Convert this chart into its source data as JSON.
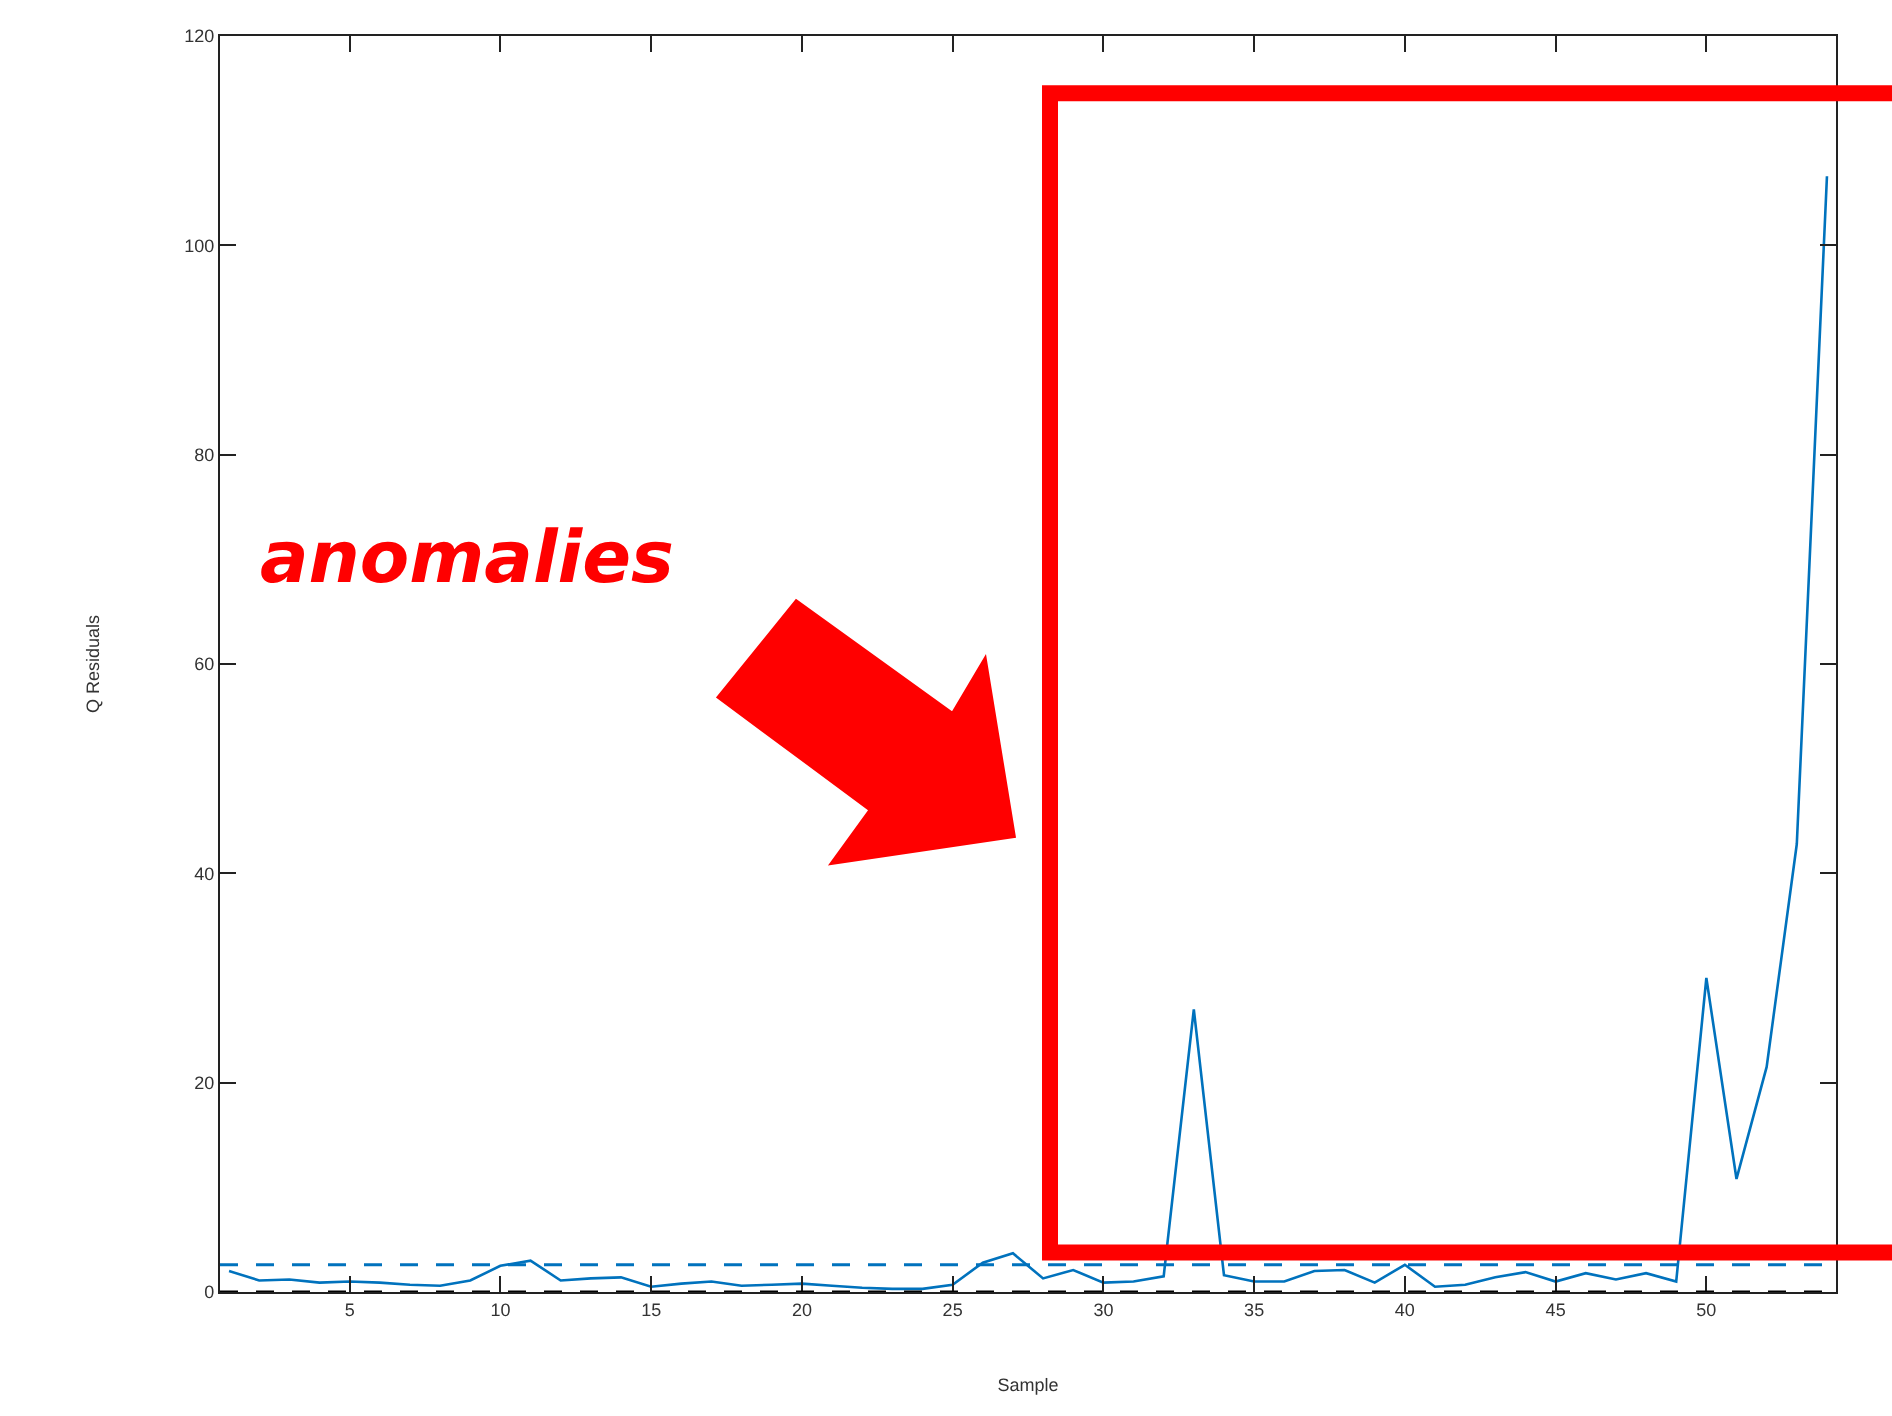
{
  "chart_data": {
    "type": "line",
    "xlabel": "Sample",
    "ylabel": "Q Residuals",
    "x": [
      1,
      2,
      3,
      4,
      5,
      6,
      7,
      8,
      9,
      10,
      11,
      12,
      13,
      14,
      15,
      16,
      17,
      18,
      19,
      20,
      21,
      22,
      23,
      24,
      25,
      26,
      27,
      28,
      29,
      30,
      31,
      32,
      33,
      34,
      35,
      36,
      37,
      38,
      39,
      40,
      41,
      42,
      43,
      44,
      45,
      46,
      47,
      48,
      49,
      50,
      51,
      52,
      53,
      54
    ],
    "series": [
      {
        "color": "#0072bd",
        "values": [
          2.0,
          1.1,
          1.2,
          0.9,
          1.0,
          0.9,
          0.7,
          0.6,
          1.1,
          2.5,
          3.0,
          1.1,
          1.3,
          1.4,
          0.5,
          0.8,
          1.0,
          0.6,
          0.7,
          0.8,
          0.6,
          0.4,
          0.3,
          0.3,
          0.7,
          2.8,
          3.7,
          1.3,
          2.1,
          0.9,
          1.0,
          1.5,
          27,
          1.6,
          1.0,
          1.0,
          2.0,
          2.1,
          0.9,
          2.6,
          0.5,
          0.7,
          1.4,
          1.9,
          1.0,
          1.8,
          1.2,
          1.8,
          1.0,
          30,
          10.8,
          21.5,
          42.8,
          106.6
        ]
      }
    ],
    "xlim": [
      0.7,
      54.3
    ],
    "xticks": [
      5,
      10,
      15,
      20,
      25,
      30,
      35,
      40,
      45,
      50
    ],
    "ylim": [
      0,
      120
    ],
    "yticks": [
      0,
      20,
      40,
      60,
      80,
      100,
      120
    ],
    "ref_lines": [
      {
        "axis": "y",
        "value": 2.6,
        "color": "#0072bd",
        "line_style": "dashed"
      },
      {
        "axis": "y",
        "value": 0,
        "color": "#000000",
        "line_style": "dashed"
      }
    ],
    "annotations": [
      "anomalies"
    ],
    "marker": "none",
    "line_style": "solid"
  }
}
